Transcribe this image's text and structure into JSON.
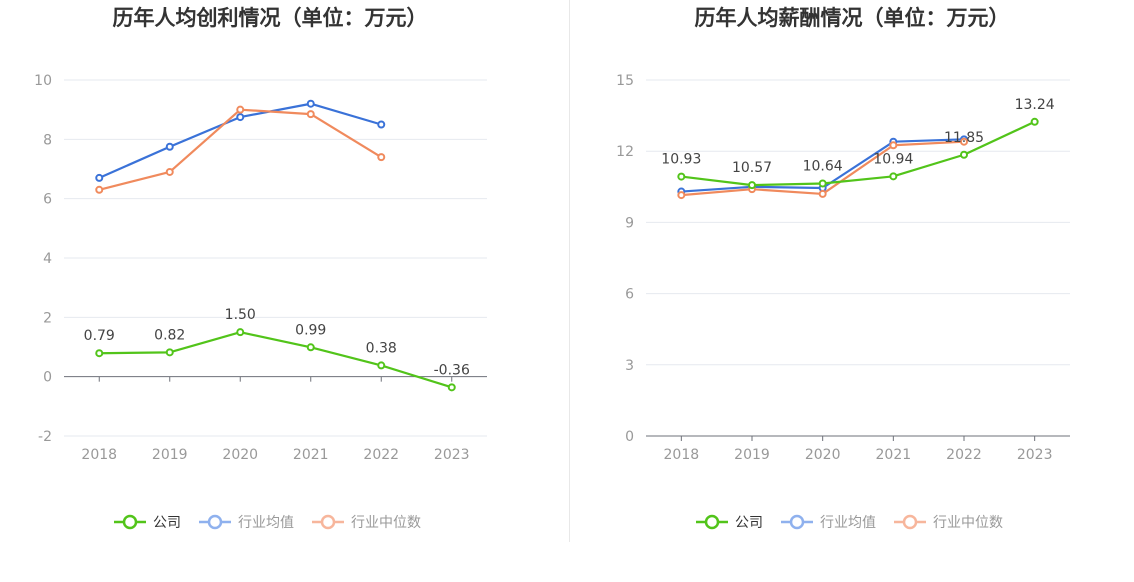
{
  "colors": {
    "company": "#52c41a",
    "avg": "#3a72d8",
    "median": "#f08a5d",
    "legend_avg": "#8fb1ee",
    "legend_median": "#f7b69c"
  },
  "legend": {
    "company": "公司",
    "avg": "行业均值",
    "median": "行业中位数"
  },
  "chart_data": [
    {
      "type": "line",
      "title": "历年人均创利情况（单位：万元）",
      "x": [
        "2018",
        "2019",
        "2020",
        "2021",
        "2022",
        "2023"
      ],
      "yticks": [
        "-2",
        "0",
        "2",
        "4",
        "6",
        "8",
        "10"
      ],
      "ylim": [
        -2,
        10
      ],
      "grid": true,
      "legend_position": "bottom",
      "series": [
        {
          "key": "company",
          "name": "公司",
          "values": [
            0.79,
            0.82,
            1.5,
            0.99,
            0.38,
            -0.36
          ],
          "labels": [
            "0.79",
            "0.82",
            "1.50",
            "0.99",
            "0.38",
            "-0.36"
          ]
        },
        {
          "key": "avg",
          "name": "行业均值",
          "values": [
            6.7,
            7.75,
            8.75,
            9.2,
            8.5,
            null
          ]
        },
        {
          "key": "median",
          "name": "行业中位数",
          "values": [
            6.3,
            6.9,
            9.0,
            8.85,
            7.4,
            null
          ]
        }
      ]
    },
    {
      "type": "line",
      "title": "历年人均薪酬情况（单位：万元）",
      "x": [
        "2018",
        "2019",
        "2020",
        "2021",
        "2022",
        "2023"
      ],
      "yticks": [
        "0",
        "3",
        "6",
        "9",
        "12",
        "15"
      ],
      "ylim": [
        0,
        15
      ],
      "grid": true,
      "legend_position": "bottom",
      "series": [
        {
          "key": "company",
          "name": "公司",
          "values": [
            10.93,
            10.57,
            10.64,
            10.94,
            11.85,
            13.24
          ],
          "labels": [
            "10.93",
            "10.57",
            "10.64",
            "10.94",
            "11.85",
            "13.24"
          ]
        },
        {
          "key": "avg",
          "name": "行业均值",
          "values": [
            10.3,
            10.5,
            10.45,
            12.4,
            12.5,
            null
          ]
        },
        {
          "key": "median",
          "name": "行业中位数",
          "values": [
            10.15,
            10.4,
            10.2,
            12.25,
            12.4,
            null
          ]
        }
      ]
    }
  ]
}
